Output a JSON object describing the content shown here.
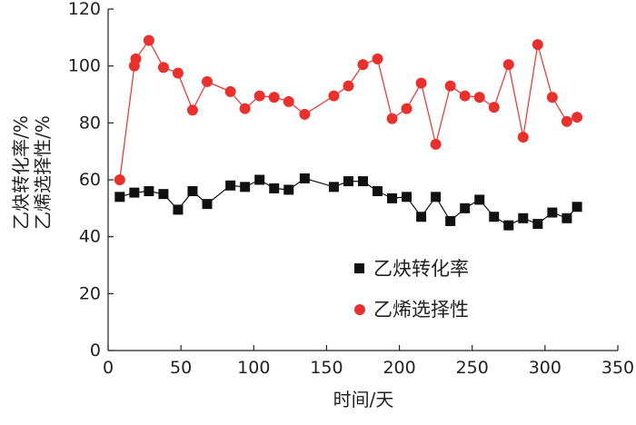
{
  "chart_data": {
    "type": "line",
    "xlabel": "时间/天",
    "ylabel_lines": [
      "乙烯选择性/%",
      "乙炔转化率/%"
    ],
    "xlim": [
      0,
      350
    ],
    "ylim": [
      0,
      120
    ],
    "xticks": [
      0,
      50,
      100,
      150,
      200,
      250,
      300,
      350
    ],
    "yticks": [
      0,
      20,
      40,
      60,
      80,
      100,
      120
    ],
    "grid": false,
    "legend": "center-right",
    "series": [
      {
        "name": "乙炔转化率",
        "color": "#111111",
        "marker": "square",
        "points": [
          [
            8,
            54
          ],
          [
            18,
            55.5
          ],
          [
            28,
            56
          ],
          [
            38,
            55
          ],
          [
            48,
            49.5
          ],
          [
            58,
            56
          ],
          [
            68,
            51.5
          ],
          [
            84,
            58
          ],
          [
            94,
            57.5
          ],
          [
            104,
            60
          ],
          [
            114,
            57
          ],
          [
            124,
            56.5
          ],
          [
            135,
            60.5
          ],
          [
            155,
            57.5
          ],
          [
            165,
            59.5
          ],
          [
            175,
            59.5
          ],
          [
            185,
            56
          ],
          [
            195,
            53.5
          ],
          [
            205,
            54
          ],
          [
            215,
            47
          ],
          [
            225,
            54
          ],
          [
            235,
            45.5
          ],
          [
            245,
            50
          ],
          [
            255,
            53
          ],
          [
            265,
            47
          ],
          [
            275,
            44
          ],
          [
            285,
            46.5
          ],
          [
            295,
            44.5
          ],
          [
            305,
            48.5
          ],
          [
            315,
            46.5
          ],
          [
            322,
            50.5
          ]
        ]
      },
      {
        "name": "乙烯选择性",
        "color": "#e8312c",
        "marker": "circle",
        "points": [
          [
            8,
            60
          ],
          [
            18,
            100
          ],
          [
            19,
            102.5
          ],
          [
            28,
            109
          ],
          [
            38,
            99.5
          ],
          [
            48,
            97.5
          ],
          [
            58,
            84.5
          ],
          [
            68,
            94.5
          ],
          [
            84,
            91
          ],
          [
            94,
            85
          ],
          [
            104,
            89.5
          ],
          [
            114,
            89
          ],
          [
            124,
            87.5
          ],
          [
            135,
            83
          ],
          [
            155,
            89.5
          ],
          [
            165,
            93
          ],
          [
            175,
            100.5
          ],
          [
            185,
            102.5
          ],
          [
            195,
            81.5
          ],
          [
            205,
            85
          ],
          [
            215,
            94
          ],
          [
            225,
            72.5
          ],
          [
            235,
            93
          ],
          [
            245,
            89.5
          ],
          [
            255,
            89
          ],
          [
            265,
            85.5
          ],
          [
            275,
            100.5
          ],
          [
            285,
            75
          ],
          [
            295,
            107.5
          ],
          [
            305,
            89
          ],
          [
            315,
            80.5
          ],
          [
            322,
            82
          ]
        ]
      }
    ]
  }
}
